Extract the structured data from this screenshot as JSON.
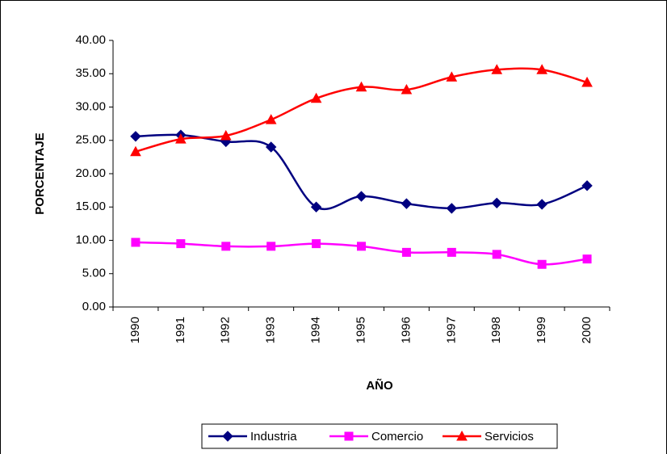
{
  "chart_data": {
    "type": "line",
    "xlabel": "AÑO",
    "ylabel": "PORCENTAJE",
    "categories": [
      "1990",
      "1991",
      "1992",
      "1993",
      "1994",
      "1995",
      "1996",
      "1997",
      "1998",
      "1999",
      "2000"
    ],
    "series": [
      {
        "name": "Industria",
        "color": "#000080",
        "marker": "diamond",
        "values": [
          25.6,
          25.8,
          24.8,
          24.0,
          15.0,
          16.6,
          15.5,
          14.8,
          15.6,
          15.4,
          18.2
        ]
      },
      {
        "name": "Comercio",
        "color": "#ff00ff",
        "marker": "square",
        "values": [
          9.7,
          9.5,
          9.1,
          9.1,
          9.5,
          9.1,
          8.2,
          8.2,
          7.9,
          6.4,
          7.2
        ]
      },
      {
        "name": "Servicios",
        "color": "#ff0000",
        "marker": "triangle",
        "values": [
          23.3,
          25.2,
          25.7,
          28.1,
          31.3,
          33.0,
          32.6,
          34.5,
          35.6,
          35.6,
          33.7
        ]
      }
    ],
    "ylim": [
      0,
      40
    ],
    "yticks": [
      {
        "value": 0,
        "label": "0.00"
      },
      {
        "value": 5,
        "label": "5.00"
      },
      {
        "value": 10,
        "label": "10.00"
      },
      {
        "value": 15,
        "label": "15.00"
      },
      {
        "value": 20,
        "label": "20.00"
      },
      {
        "value": 25,
        "label": "25.00"
      },
      {
        "value": 30,
        "label": "30.00"
      },
      {
        "value": 35,
        "label": "35.00"
      },
      {
        "value": 40,
        "label": "40.00"
      }
    ],
    "grid": false,
    "legend": "bottom"
  }
}
